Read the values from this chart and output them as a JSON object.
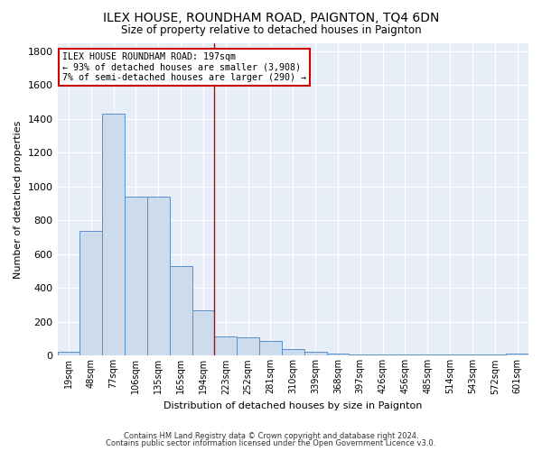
{
  "title": "ILEX HOUSE, ROUNDHAM ROAD, PAIGNTON, TQ4 6DN",
  "subtitle": "Size of property relative to detached houses in Paignton",
  "xlabel": "Distribution of detached houses by size in Paignton",
  "ylabel": "Number of detached properties",
  "bar_labels": [
    "19sqm",
    "48sqm",
    "77sqm",
    "106sqm",
    "135sqm",
    "165sqm",
    "194sqm",
    "223sqm",
    "252sqm",
    "281sqm",
    "310sqm",
    "339sqm",
    "368sqm",
    "397sqm",
    "426sqm",
    "456sqm",
    "485sqm",
    "514sqm",
    "543sqm",
    "572sqm",
    "601sqm"
  ],
  "bar_values": [
    25,
    740,
    1430,
    940,
    940,
    530,
    270,
    115,
    110,
    90,
    40,
    25,
    15,
    8,
    8,
    5,
    5,
    5,
    5,
    5,
    15
  ],
  "bar_color": "#ccdcec",
  "bar_edge_color": "#5b8fc9",
  "background_color": "#e8eef8",
  "grid_color": "#ffffff",
  "vline_x": 6.5,
  "vline_color": "#cc0000",
  "annotation_text": "ILEX HOUSE ROUNDHAM ROAD: 197sqm\n← 93% of detached houses are smaller (3,908)\n7% of semi-detached houses are larger (290) →",
  "annotation_box_color": "#ffffff",
  "annotation_box_edge_color": "#cc0000",
  "footer_line1": "Contains HM Land Registry data © Crown copyright and database right 2024.",
  "footer_line2": "Contains public sector information licensed under the Open Government Licence v3.0.",
  "ylim": [
    0,
    1850
  ],
  "yticks": [
    0,
    200,
    400,
    600,
    800,
    1000,
    1200,
    1400,
    1600,
    1800
  ],
  "figsize": [
    6.0,
    5.0
  ],
  "dpi": 100
}
